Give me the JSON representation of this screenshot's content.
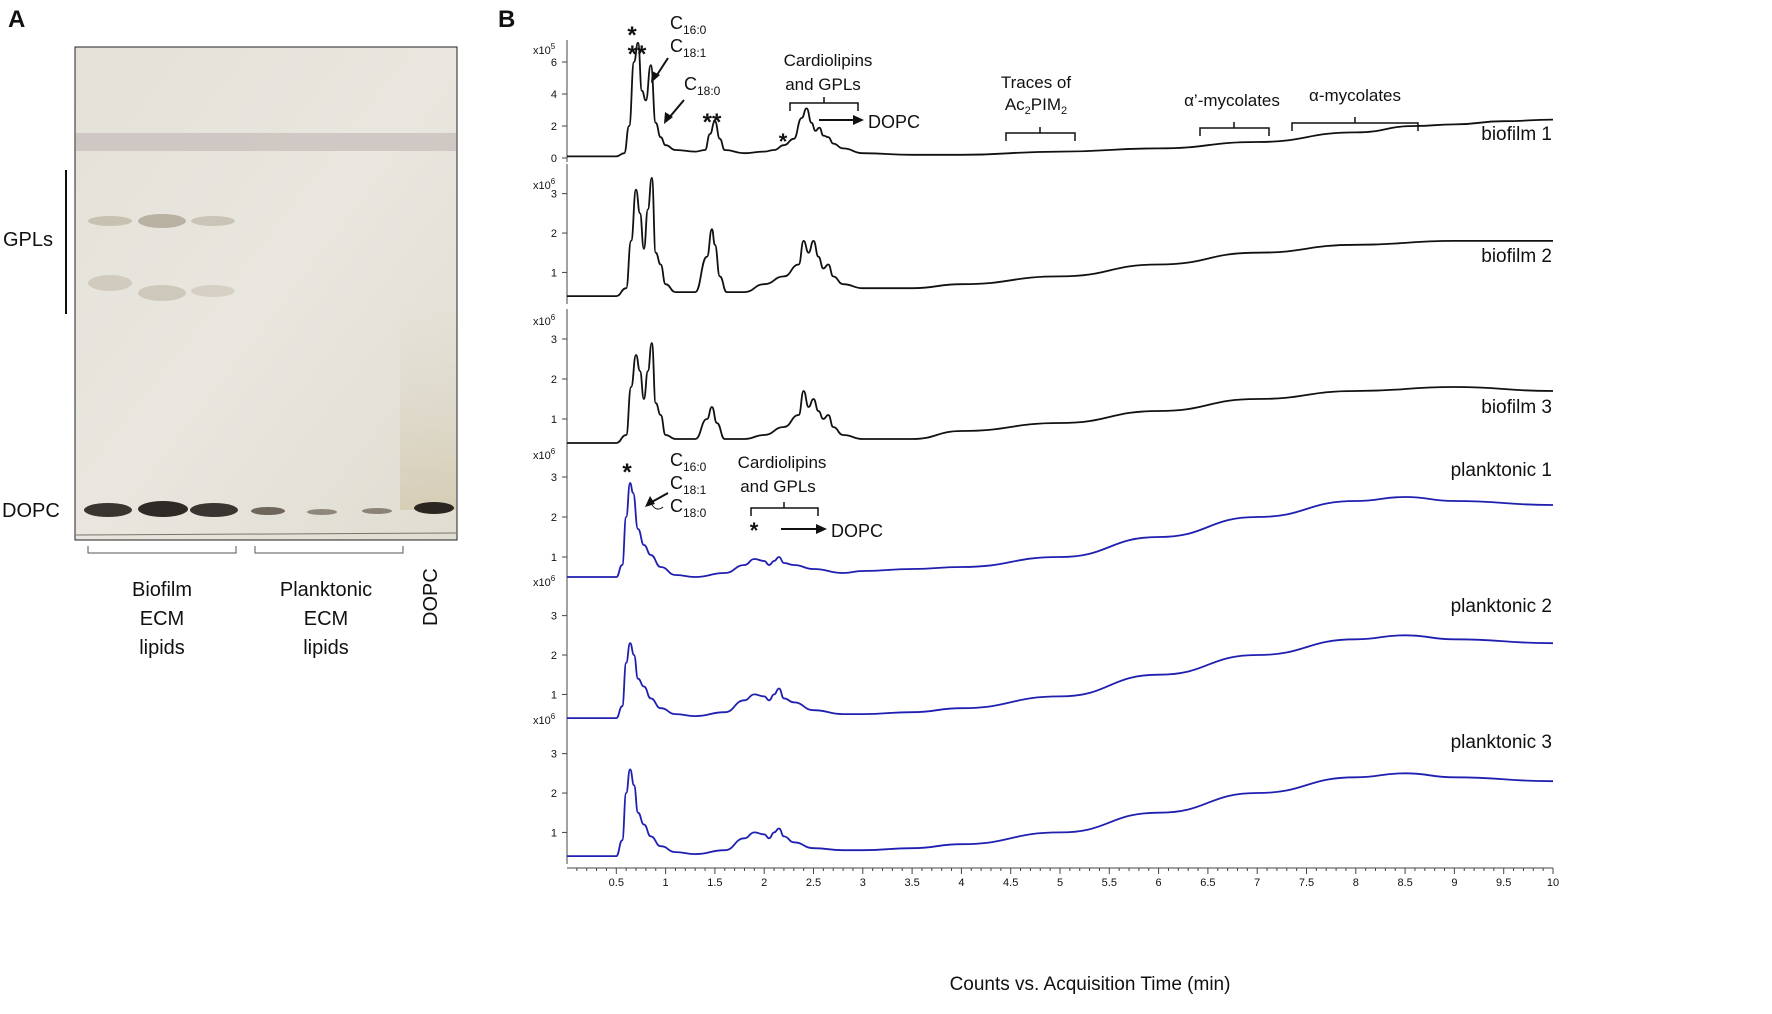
{
  "panel_a": {
    "label": "A",
    "gpl_label": "GPLs",
    "dopc_label": "DOPC",
    "groups": [
      {
        "lines": [
          "Biofilm",
          "ECM",
          "lipids"
        ]
      },
      {
        "lines": [
          "Planktonic",
          "ECM",
          "lipids"
        ]
      }
    ],
    "standard_lane_label": "DOPC"
  },
  "panel_b": {
    "label": "B"
  },
  "chart_data": {
    "type": "line",
    "xlabel": "Counts vs. Acquisition Time (min)",
    "xlim": [
      0,
      10
    ],
    "xticks": [
      "0.5",
      "1",
      "1.5",
      "2",
      "2.5",
      "3",
      "3.5",
      "4",
      "4.5",
      "5",
      "5.5",
      "6",
      "6.5",
      "7",
      "7.5",
      "8",
      "8.5",
      "9",
      "9.5",
      "10"
    ],
    "series": [
      {
        "name": "biofilm 1",
        "color": "#111111",
        "scale": "x10",
        "exp": "5",
        "yticks": [
          "0",
          "2",
          "4",
          "6"
        ],
        "ylim": [
          0,
          7
        ],
        "x": [
          0,
          0.5,
          0.58,
          0.63,
          0.68,
          0.72,
          0.76,
          0.8,
          0.85,
          0.9,
          0.95,
          1.0,
          1.1,
          1.3,
          1.4,
          1.45,
          1.5,
          1.55,
          1.6,
          1.8,
          2.0,
          2.1,
          2.2,
          2.3,
          2.38,
          2.43,
          2.48,
          2.52,
          2.56,
          2.6,
          2.65,
          2.7,
          2.8,
          3.0,
          3.5,
          4.0,
          5.0,
          6.0,
          7.0,
          8.0,
          8.6,
          9.0,
          9.5,
          10
        ],
        "y": [
          0.1,
          0.1,
          0.3,
          2.0,
          6.0,
          7.2,
          4.2,
          3.6,
          5.8,
          2.2,
          1.3,
          0.8,
          0.5,
          0.4,
          0.5,
          1.5,
          2.3,
          1.2,
          0.5,
          0.3,
          0.4,
          0.5,
          0.8,
          1.2,
          2.5,
          3.1,
          2.2,
          1.7,
          1.9,
          1.4,
          1.3,
          0.9,
          0.6,
          0.3,
          0.2,
          0.2,
          0.4,
          0.6,
          1.0,
          1.6,
          2.0,
          2.1,
          2.3,
          2.4
        ]
      },
      {
        "name": "biofilm 2",
        "color": "#111111",
        "scale": "x10",
        "exp": "6",
        "yticks": [
          "1",
          "2",
          "3"
        ],
        "ylim": [
          0.3,
          3.6
        ],
        "x": [
          0,
          0.5,
          0.6,
          0.65,
          0.7,
          0.74,
          0.78,
          0.82,
          0.86,
          0.9,
          0.95,
          1.0,
          1.1,
          1.3,
          1.42,
          1.47,
          1.5,
          1.55,
          1.62,
          1.8,
          2.0,
          2.2,
          2.35,
          2.4,
          2.45,
          2.5,
          2.55,
          2.6,
          2.65,
          2.7,
          2.8,
          3.0,
          3.5,
          4.0,
          5.0,
          6.0,
          7.0,
          8.0,
          9.0,
          10
        ],
        "y": [
          0.4,
          0.4,
          0.6,
          1.8,
          3.1,
          2.5,
          1.6,
          2.6,
          3.4,
          1.5,
          1.2,
          0.7,
          0.5,
          0.5,
          1.4,
          2.1,
          1.7,
          0.9,
          0.5,
          0.5,
          0.7,
          0.9,
          1.2,
          1.8,
          1.5,
          1.8,
          1.4,
          1.1,
          1.2,
          0.9,
          0.7,
          0.6,
          0.6,
          0.7,
          0.9,
          1.2,
          1.5,
          1.7,
          1.8,
          1.8
        ]
      },
      {
        "name": "biofilm 3",
        "color": "#111111",
        "scale": "x10",
        "exp": "6",
        "yticks": [
          "1",
          "2",
          "3"
        ],
        "ylim": [
          0.3,
          3.6
        ],
        "x": [
          0,
          0.5,
          0.6,
          0.65,
          0.7,
          0.74,
          0.78,
          0.82,
          0.86,
          0.9,
          0.95,
          1.0,
          1.1,
          1.3,
          1.42,
          1.47,
          1.52,
          1.6,
          1.8,
          2.0,
          2.2,
          2.35,
          2.4,
          2.45,
          2.5,
          2.55,
          2.6,
          2.65,
          2.7,
          2.8,
          3.0,
          3.5,
          4.0,
          5.0,
          6.0,
          7.0,
          8.0,
          9.0,
          10
        ],
        "y": [
          0.4,
          0.4,
          0.6,
          1.8,
          2.6,
          2.2,
          1.5,
          2.2,
          2.9,
          1.4,
          1.1,
          0.6,
          0.5,
          0.5,
          1.0,
          1.3,
          0.9,
          0.5,
          0.5,
          0.6,
          0.8,
          1.1,
          1.7,
          1.3,
          1.5,
          1.2,
          1.0,
          1.1,
          0.8,
          0.6,
          0.5,
          0.5,
          0.7,
          0.9,
          1.2,
          1.5,
          1.7,
          1.8,
          1.7
        ]
      },
      {
        "name": "planktonic 1",
        "color": "#1f1fb0",
        "scale": "x10",
        "exp": "6",
        "yticks": [
          "1",
          "2",
          "3"
        ],
        "ylim": [
          0.3,
          3.6
        ],
        "x": [
          0,
          0.5,
          0.56,
          0.6,
          0.64,
          0.67,
          0.72,
          0.78,
          0.85,
          0.95,
          1.1,
          1.3,
          1.6,
          1.8,
          1.9,
          2.0,
          2.05,
          2.1,
          2.15,
          2.2,
          2.3,
          2.5,
          2.8,
          3.0,
          3.5,
          4.0,
          5.0,
          6.0,
          7.0,
          8.0,
          8.5,
          9.0,
          10
        ],
        "y": [
          0.5,
          0.5,
          0.8,
          2.0,
          2.85,
          2.6,
          1.7,
          1.3,
          1.05,
          0.75,
          0.55,
          0.5,
          0.6,
          0.8,
          0.95,
          0.9,
          0.8,
          0.9,
          1.0,
          0.85,
          0.8,
          0.7,
          0.6,
          0.65,
          0.7,
          0.75,
          1.0,
          1.5,
          2.0,
          2.4,
          2.5,
          2.4,
          2.3
        ]
      },
      {
        "name": "planktonic 2",
        "color": "#1f1fb0",
        "scale": "x10",
        "exp": "6",
        "yticks": [
          "1",
          "2",
          "3"
        ],
        "ylim": [
          0.3,
          3.6
        ],
        "x": [
          0,
          0.5,
          0.56,
          0.6,
          0.64,
          0.68,
          0.72,
          0.78,
          0.85,
          0.95,
          1.1,
          1.3,
          1.6,
          1.8,
          1.9,
          2.0,
          2.05,
          2.1,
          2.15,
          2.2,
          2.3,
          2.5,
          2.8,
          3.0,
          3.5,
          4.0,
          5.0,
          6.0,
          7.0,
          8.0,
          8.5,
          9.0,
          10
        ],
        "y": [
          0.4,
          0.4,
          0.7,
          1.8,
          2.3,
          2.0,
          1.4,
          1.2,
          0.9,
          0.65,
          0.5,
          0.45,
          0.55,
          0.85,
          1.0,
          0.95,
          0.85,
          1.0,
          1.15,
          0.9,
          0.8,
          0.6,
          0.5,
          0.5,
          0.55,
          0.65,
          0.95,
          1.5,
          2.0,
          2.4,
          2.5,
          2.4,
          2.3
        ]
      },
      {
        "name": "planktonic 3",
        "color": "#1f1fb0",
        "scale": "x10",
        "exp": "6",
        "yticks": [
          "1",
          "2",
          "3"
        ],
        "ylim": [
          0.3,
          3.6
        ],
        "x": [
          0,
          0.5,
          0.56,
          0.6,
          0.64,
          0.68,
          0.72,
          0.78,
          0.85,
          0.95,
          1.1,
          1.3,
          1.6,
          1.8,
          1.9,
          2.0,
          2.05,
          2.1,
          2.15,
          2.2,
          2.3,
          2.5,
          2.8,
          3.0,
          3.5,
          4.0,
          5.0,
          6.0,
          7.0,
          8.0,
          8.5,
          9.0,
          10
        ],
        "y": [
          0.4,
          0.4,
          0.8,
          2.0,
          2.6,
          2.2,
          1.5,
          1.2,
          0.9,
          0.65,
          0.5,
          0.45,
          0.55,
          0.85,
          1.0,
          0.95,
          0.85,
          1.0,
          1.1,
          0.9,
          0.75,
          0.6,
          0.55,
          0.55,
          0.6,
          0.7,
          1.0,
          1.5,
          2.0,
          2.4,
          2.5,
          2.4,
          2.3
        ]
      }
    ],
    "annotations": {
      "biofilm1": {
        "star1": "*",
        "star2": "**",
        "star3": "**",
        "star4": "*",
        "c160": "C",
        "c160_sub": "16:0",
        "c181": "C",
        "c181_sub": "18:1",
        "c180": "C",
        "c180_sub": "18:0",
        "cl_line1": "Cardiolipins",
        "cl_line2": "and  GPLs",
        "dopc": "DOPC",
        "traces_line1": "Traces of",
        "traces_ac": "Ac",
        "traces_sub1": "2",
        "traces_pim": "PIM",
        "traces_sub2": "2",
        "alpha_prime": "α’-mycolates",
        "alpha": "α-mycolates"
      },
      "planktonic1": {
        "star1": "*",
        "star2": "*",
        "c160": "C",
        "c160_sub": "16:0",
        "c181": "C",
        "c181_sub": "18:1",
        "c180": "C",
        "c180_sub": "18:0",
        "cl_line1": "Cardiolipins",
        "cl_line2": "and  GPLs",
        "dopc": "DOPC"
      }
    }
  }
}
